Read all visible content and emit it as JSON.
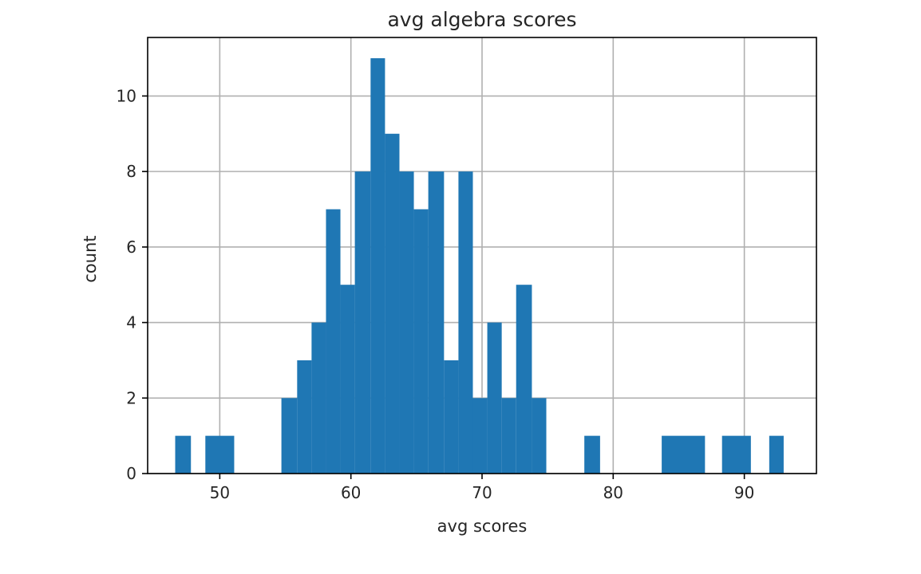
{
  "chart_data": {
    "type": "bar",
    "title": "avg algebra scores",
    "xlabel": "avg scores",
    "ylabel": "count",
    "xlim": [
      44.5,
      95.5
    ],
    "ylim": [
      0,
      11.55
    ],
    "x_ticks": [
      50,
      60,
      70,
      80,
      90
    ],
    "y_ticks": [
      0,
      2,
      4,
      6,
      8,
      10
    ],
    "grid": true,
    "bar_color": "#1f77b4",
    "bins": [
      {
        "x0": 46.6,
        "x1": 47.8,
        "count": 1
      },
      {
        "x0": 48.9,
        "x1": 51.1,
        "count": 1
      },
      {
        "x0": 54.7,
        "x1": 55.9,
        "count": 2
      },
      {
        "x0": 55.9,
        "x1": 57.0,
        "count": 3
      },
      {
        "x0": 57.0,
        "x1": 58.1,
        "count": 4
      },
      {
        "x0": 58.1,
        "x1": 59.2,
        "count": 7
      },
      {
        "x0": 59.2,
        "x1": 60.3,
        "count": 5
      },
      {
        "x0": 60.3,
        "x1": 61.5,
        "count": 8
      },
      {
        "x0": 61.5,
        "x1": 62.6,
        "count": 11
      },
      {
        "x0": 62.6,
        "x1": 63.7,
        "count": 9
      },
      {
        "x0": 63.7,
        "x1": 64.8,
        "count": 8
      },
      {
        "x0": 64.8,
        "x1": 65.9,
        "count": 7
      },
      {
        "x0": 65.9,
        "x1": 67.1,
        "count": 8
      },
      {
        "x0": 67.1,
        "x1": 68.2,
        "count": 3
      },
      {
        "x0": 68.2,
        "x1": 69.3,
        "count": 8
      },
      {
        "x0": 69.3,
        "x1": 70.4,
        "count": 2
      },
      {
        "x0": 70.4,
        "x1": 71.5,
        "count": 4
      },
      {
        "x0": 71.5,
        "x1": 72.6,
        "count": 2
      },
      {
        "x0": 72.6,
        "x1": 73.8,
        "count": 5
      },
      {
        "x0": 73.8,
        "x1": 74.9,
        "count": 2
      },
      {
        "x0": 77.8,
        "x1": 79.0,
        "count": 1
      },
      {
        "x0": 83.7,
        "x1": 87.0,
        "count": 1
      },
      {
        "x0": 88.3,
        "x1": 90.5,
        "count": 1
      },
      {
        "x0": 91.9,
        "x1": 93.0,
        "count": 1
      }
    ]
  }
}
